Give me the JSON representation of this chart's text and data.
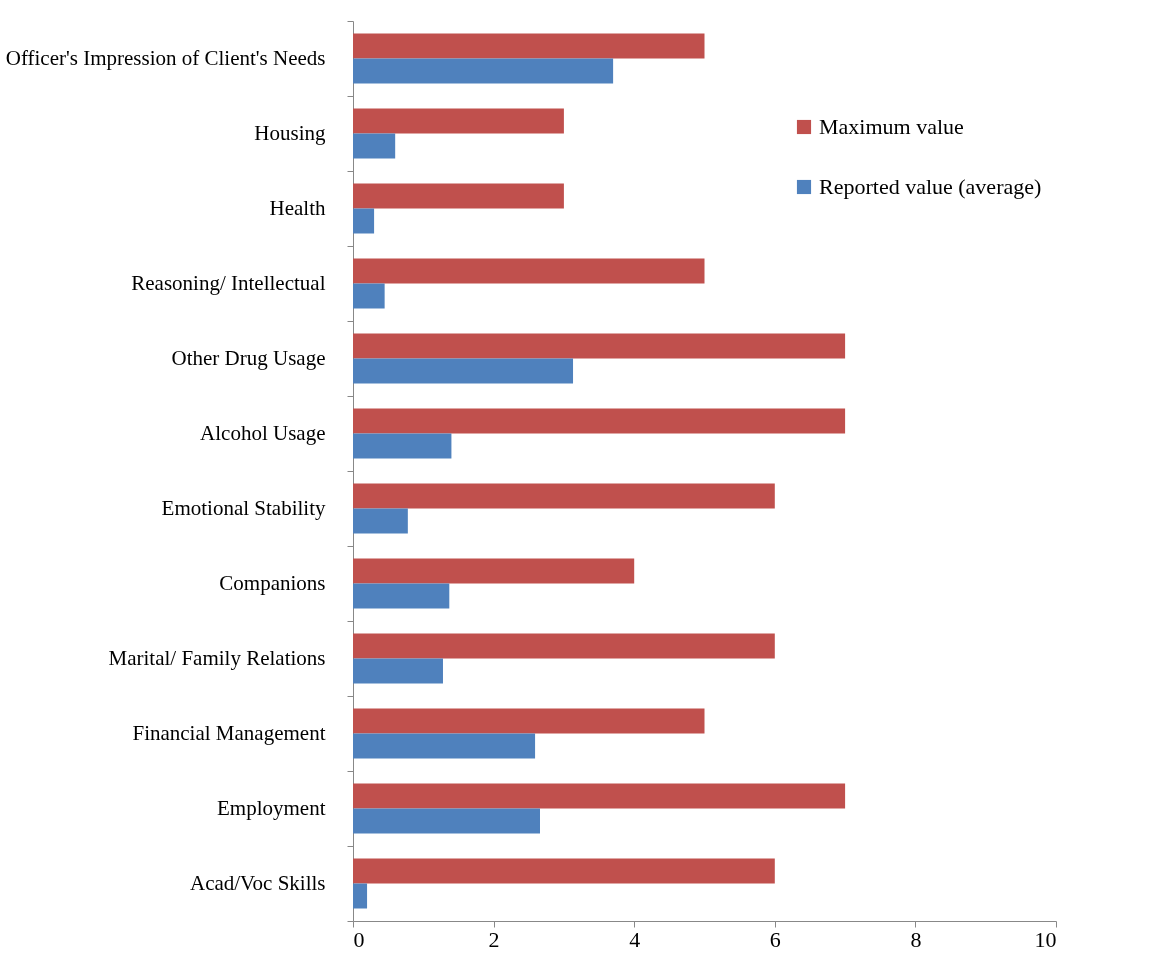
{
  "chart_data": {
    "type": "bar",
    "orientation": "horizontal",
    "categories": [
      "Officer's Impression of Client's Needs",
      "Housing",
      "Health",
      "Reasoning/ Intellectual",
      "Other Drug Usage",
      "Alcohol Usage",
      "Emotional Stability",
      "Companions",
      "Marital/ Family Relations",
      "Financial Management",
      "Employment",
      "Acad/Voc Skills"
    ],
    "series": [
      {
        "name": "Maximum value",
        "color": "#c0504d",
        "values": [
          5,
          3,
          3,
          5,
          7,
          7,
          6,
          4,
          6,
          5,
          7,
          6
        ]
      },
      {
        "name": "Reported value (average)",
        "color": "#4f81bd",
        "values": [
          3.7,
          0.6,
          0.3,
          0.45,
          3.13,
          1.4,
          0.78,
          1.37,
          1.28,
          2.59,
          2.66,
          0.2
        ]
      }
    ],
    "xlim": [
      0,
      10
    ],
    "xticks": [
      0,
      2,
      4,
      6,
      8,
      10
    ],
    "grid": false,
    "legend": "top right"
  }
}
